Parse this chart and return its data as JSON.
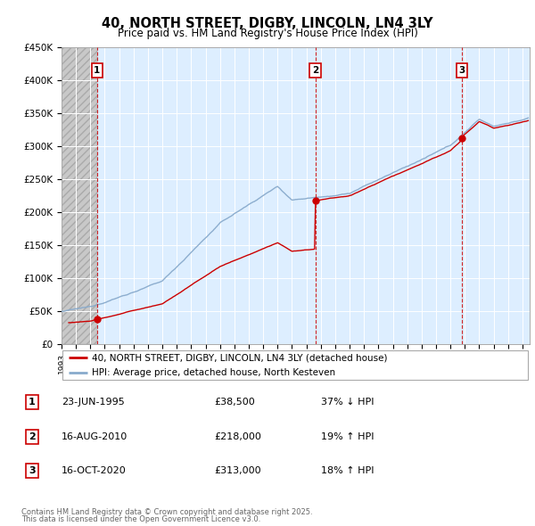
{
  "title": "40, NORTH STREET, DIGBY, LINCOLN, LN4 3LY",
  "subtitle": "Price paid vs. HM Land Registry's House Price Index (HPI)",
  "legend_line1": "40, NORTH STREET, DIGBY, LINCOLN, LN4 3LY (detached house)",
  "legend_line2": "HPI: Average price, detached house, North Kesteven",
  "footer_line1": "Contains HM Land Registry data © Crown copyright and database right 2025.",
  "footer_line2": "This data is licensed under the Open Government Licence v3.0.",
  "transactions": [
    {
      "num": 1,
      "date": "23-JUN-1995",
      "price": 38500,
      "pct": "37%",
      "dir": "↓",
      "year": 1995.47
    },
    {
      "num": 2,
      "date": "16-AUG-2010",
      "price": 218000,
      "pct": "19%",
      "dir": "↑",
      "year": 2010.62
    },
    {
      "num": 3,
      "date": "16-OCT-2020",
      "price": 313000,
      "pct": "18%",
      "dir": "↑",
      "year": 2020.79
    }
  ],
  "table_rows": [
    [
      "1",
      "23-JUN-1995",
      "£38,500",
      "37% ↓ HPI"
    ],
    [
      "2",
      "16-AUG-2010",
      "£218,000",
      "19% ↑ HPI"
    ],
    [
      "3",
      "16-OCT-2020",
      "£313,000",
      "18% ↑ HPI"
    ]
  ],
  "red_color": "#cc0000",
  "blue_color": "#88aacc",
  "grid_color": "#cccccc",
  "plot_bg_color": "#ddeeff",
  "ylim": [
    0,
    450000
  ],
  "xlim_start": 1993.0,
  "xlim_end": 2025.5,
  "hatch_end_year": 1995.47,
  "yticks": [
    0,
    50000,
    100000,
    150000,
    200000,
    250000,
    300000,
    350000,
    400000,
    450000
  ],
  "ytick_labels": [
    "£0",
    "£50K",
    "£100K",
    "£150K",
    "£200K",
    "£250K",
    "£300K",
    "£350K",
    "£400K",
    "£450K"
  ],
  "xticks": [
    1993,
    1994,
    1995,
    1996,
    1997,
    1998,
    1999,
    2000,
    2001,
    2002,
    2003,
    2004,
    2005,
    2006,
    2007,
    2008,
    2009,
    2010,
    2011,
    2012,
    2013,
    2014,
    2015,
    2016,
    2017,
    2018,
    2019,
    2020,
    2021,
    2022,
    2023,
    2024,
    2025
  ]
}
